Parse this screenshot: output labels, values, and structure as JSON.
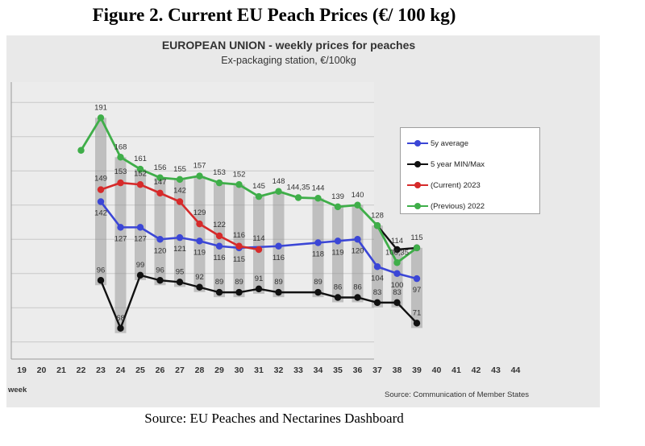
{
  "figure_title": "Figure 2. Current EU Peach Prices (€/ 100 kg)",
  "footer_source": "Source: EU Peaches and Nectarines Dashboard",
  "chart_data": {
    "type": "line",
    "title": "EUROPEAN UNION  -  weekly prices for peaches",
    "subtitle": "Ex-packaging station, €/100kg",
    "xlabel": "week",
    "ylabel": "",
    "source_note": "Source: Communication of Member States",
    "legend_position": "top-right",
    "grid": true,
    "x": [
      19,
      20,
      21,
      22,
      23,
      24,
      25,
      26,
      27,
      28,
      29,
      30,
      31,
      32,
      33,
      34,
      35,
      36,
      37,
      38,
      39,
      40,
      41,
      42,
      43,
      44
    ],
    "ylim": [
      50,
      210
    ],
    "range_shading": true,
    "series": [
      {
        "name": "5y average",
        "color": "#3b46d6",
        "points": [
          [
            23,
            142
          ],
          [
            24,
            127
          ],
          [
            25,
            127
          ],
          [
            26,
            120
          ],
          [
            27,
            121
          ],
          [
            28,
            119
          ],
          [
            29,
            116
          ],
          [
            30,
            115
          ],
          [
            32,
            116
          ],
          [
            34,
            118
          ],
          [
            35,
            119
          ],
          [
            36,
            120
          ],
          [
            37,
            104
          ],
          [
            38,
            100
          ],
          [
            39,
            97
          ]
        ],
        "labels": [
          "142",
          "127",
          "127",
          "120",
          "121",
          "119",
          "116",
          "115",
          "116",
          "118",
          "119",
          "120",
          "104",
          "100",
          "97"
        ]
      },
      {
        "name": "5 year MIN/Max",
        "color": "#111111",
        "points": [
          [
            23,
            96
          ],
          [
            24,
            68
          ],
          [
            25,
            99
          ],
          [
            26,
            96
          ],
          [
            27,
            95
          ],
          [
            28,
            92
          ],
          [
            29,
            89
          ],
          [
            30,
            89
          ],
          [
            31,
            91
          ],
          [
            32,
            89
          ],
          [
            34,
            89
          ],
          [
            35,
            86
          ],
          [
            36,
            86
          ],
          [
            37,
            83
          ],
          [
            38,
            83
          ],
          [
            39,
            71
          ]
        ],
        "labels": [
          "96",
          "68",
          "99",
          "96",
          "95",
          "92",
          "89",
          "89",
          "91",
          "89",
          "89",
          "86",
          "86",
          "83",
          "83",
          "71"
        ]
      },
      {
        "name": "(Current) 2023",
        "color": "#d62a2a",
        "points": [
          [
            23,
            149
          ],
          [
            24,
            153
          ],
          [
            25,
            152
          ],
          [
            26,
            147
          ],
          [
            27,
            142
          ],
          [
            28,
            129
          ],
          [
            29,
            122
          ],
          [
            30,
            116
          ],
          [
            31,
            114
          ]
        ],
        "labels": [
          "149",
          "153",
          "152",
          "147",
          "142",
          "129",
          "122",
          "116",
          "114"
        ]
      },
      {
        "name": "(Previous) 2022",
        "color": "#3fae49",
        "points": [
          [
            22,
            172
          ],
          [
            23,
            191
          ],
          [
            24,
            168
          ],
          [
            25,
            161
          ],
          [
            26,
            156
          ],
          [
            27,
            155
          ],
          [
            28,
            157
          ],
          [
            29,
            153
          ],
          [
            30,
            152
          ],
          [
            31,
            145
          ],
          [
            32,
            148
          ],
          [
            33,
            144.35
          ],
          [
            34,
            144
          ],
          [
            35,
            139
          ],
          [
            36,
            140
          ],
          [
            37,
            128
          ],
          [
            38,
            106.35
          ],
          [
            39,
            115
          ]
        ],
        "labels": [
          "",
          "191",
          "168",
          "161",
          "156",
          "155",
          "157",
          "153",
          "152",
          "145",
          "148",
          "144,35",
          "144",
          "139",
          "140",
          "128",
          "106,35",
          "115"
        ]
      }
    ],
    "max_series": {
      "points": [
        [
          37,
          128
        ],
        [
          38,
          114
        ],
        [
          39,
          115
        ]
      ],
      "labels": [
        "",
        "114",
        ""
      ]
    }
  }
}
